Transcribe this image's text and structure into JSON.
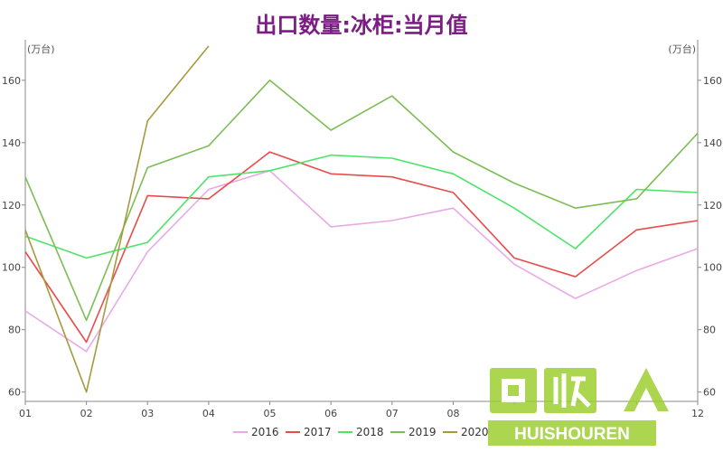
{
  "title": "出口数量:冰柜:当月值",
  "chart_data": {
    "type": "line",
    "title": "出口数量:冰柜:当月值",
    "unit_left": "(万台)",
    "unit_right": "(万台)",
    "categories": [
      "01",
      "02",
      "03",
      "04",
      "05",
      "06",
      "07",
      "08",
      "09",
      "10",
      "11",
      "12"
    ],
    "x_tick_labels": [
      "01",
      "02",
      "03",
      "04",
      "05",
      "06",
      "07",
      "08",
      "",
      "",
      "",
      "12"
    ],
    "y_ticks": [
      60,
      80,
      100,
      120,
      140,
      160
    ],
    "ylim": [
      57,
      173
    ],
    "legend_position": "bottom",
    "grid": false,
    "series": [
      {
        "name": "2016",
        "color": "#e9a9e6",
        "values": [
          86,
          73,
          105,
          125,
          131,
          113,
          115,
          119,
          101,
          90,
          99,
          106
        ]
      },
      {
        "name": "2017",
        "color": "#e94b4b",
        "values": [
          105,
          76,
          123,
          122,
          137,
          130,
          129,
          124,
          103,
          97,
          112,
          115
        ]
      },
      {
        "name": "2018",
        "color": "#4fe36a",
        "values": [
          110,
          103,
          108,
          129,
          131,
          136,
          135,
          130,
          119,
          106,
          125,
          124
        ]
      },
      {
        "name": "2019",
        "color": "#7cbd54",
        "values": [
          129,
          83,
          132,
          139,
          160,
          144,
          155,
          137,
          127,
          119,
          122,
          143
        ]
      },
      {
        "name": "2020",
        "color": "#a79a3e",
        "values": [
          112,
          60,
          147,
          171,
          null,
          null,
          null,
          null,
          null,
          null,
          null,
          null
        ]
      }
    ]
  },
  "watermark": {
    "logo_text": "回收",
    "brand_text": "HUISHOUREN",
    "color": "#9fcf32"
  }
}
